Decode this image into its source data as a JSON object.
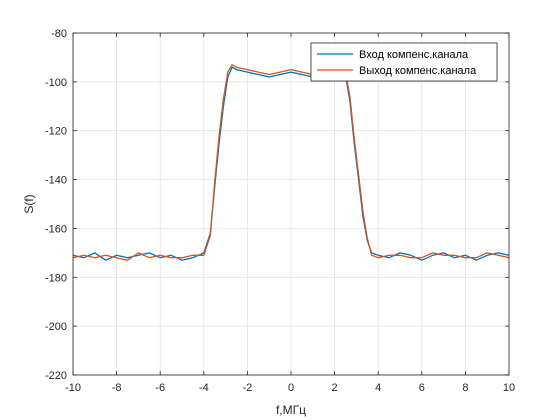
{
  "chart_data": {
    "type": "line",
    "title": "",
    "xlabel": "f,МГц",
    "ylabel": "S(f)",
    "xlim": [
      -10,
      10
    ],
    "ylim": [
      -220,
      -80
    ],
    "xticks": [
      -10,
      -8,
      -6,
      -4,
      -2,
      0,
      2,
      4,
      6,
      8,
      10
    ],
    "yticks": [
      -220,
      -200,
      -180,
      -160,
      -140,
      -120,
      -100,
      -80
    ],
    "xtick_labels": [
      "-10",
      "-8",
      "-6",
      "-4",
      "-2",
      "0",
      "2",
      "4",
      "6",
      "8",
      "10"
    ],
    "ytick_labels": [
      "-220",
      "-200",
      "-180",
      "-160",
      "-140",
      "-120",
      "-100",
      "-80"
    ],
    "grid": true,
    "legend_position": "top-right",
    "series": [
      {
        "name": "Вход компенс.канала",
        "color": "#0072BD",
        "x": [
          -10,
          -9.5,
          -9,
          -8.5,
          -8,
          -7.5,
          -7,
          -6.5,
          -6,
          -5.5,
          -5,
          -4.5,
          -4,
          -3.7,
          -3.5,
          -3.3,
          -3.1,
          -2.9,
          -2.7,
          -2.5,
          -2,
          -1.5,
          -1,
          -0.5,
          0,
          0.5,
          1,
          1.5,
          2,
          2.5,
          2.7,
          2.9,
          3.1,
          3.3,
          3.5,
          3.7,
          4,
          4.5,
          5,
          5.5,
          6,
          6.5,
          7,
          7.5,
          8,
          8.5,
          9,
          9.5,
          10
        ],
        "values": [
          -171,
          -172,
          -170,
          -173,
          -171,
          -172,
          -171,
          -170,
          -172,
          -171,
          -173,
          -172,
          -170,
          -162,
          -143,
          -125,
          -110,
          -98,
          -94,
          -95,
          -96,
          -97,
          -98,
          -97,
          -96,
          -97,
          -98,
          -96,
          -95,
          -97,
          -108,
          -125,
          -140,
          -155,
          -165,
          -170,
          -171,
          -172,
          -170,
          -171,
          -173,
          -171,
          -170,
          -172,
          -171,
          -173,
          -171,
          -170,
          -171
        ]
      },
      {
        "name": "Выход компенс.канала",
        "color": "#D95319",
        "x": [
          -10,
          -9.5,
          -9,
          -8.5,
          -8,
          -7.5,
          -7,
          -6.5,
          -6,
          -5.5,
          -5,
          -4.5,
          -4,
          -3.7,
          -3.5,
          -3.3,
          -3.1,
          -2.9,
          -2.7,
          -2.5,
          -2,
          -1.5,
          -1,
          -0.5,
          0,
          0.5,
          1,
          1.5,
          2,
          2.5,
          2.7,
          2.9,
          3.1,
          3.3,
          3.5,
          3.7,
          4,
          4.5,
          5,
          5.5,
          6,
          6.5,
          7,
          7.5,
          8,
          8.5,
          9,
          9.5,
          10
        ],
        "values": [
          -172,
          -171,
          -172,
          -171,
          -172,
          -173,
          -170,
          -172,
          -171,
          -172,
          -172,
          -171,
          -171,
          -163,
          -141,
          -122,
          -107,
          -96,
          -93,
          -94,
          -95,
          -96,
          -97,
          -96,
          -95,
          -96,
          -97,
          -95,
          -94,
          -96,
          -106,
          -123,
          -138,
          -153,
          -164,
          -171,
          -172,
          -171,
          -171,
          -172,
          -172,
          -170,
          -171,
          -171,
          -172,
          -172,
          -170,
          -171,
          -172
        ]
      }
    ]
  }
}
